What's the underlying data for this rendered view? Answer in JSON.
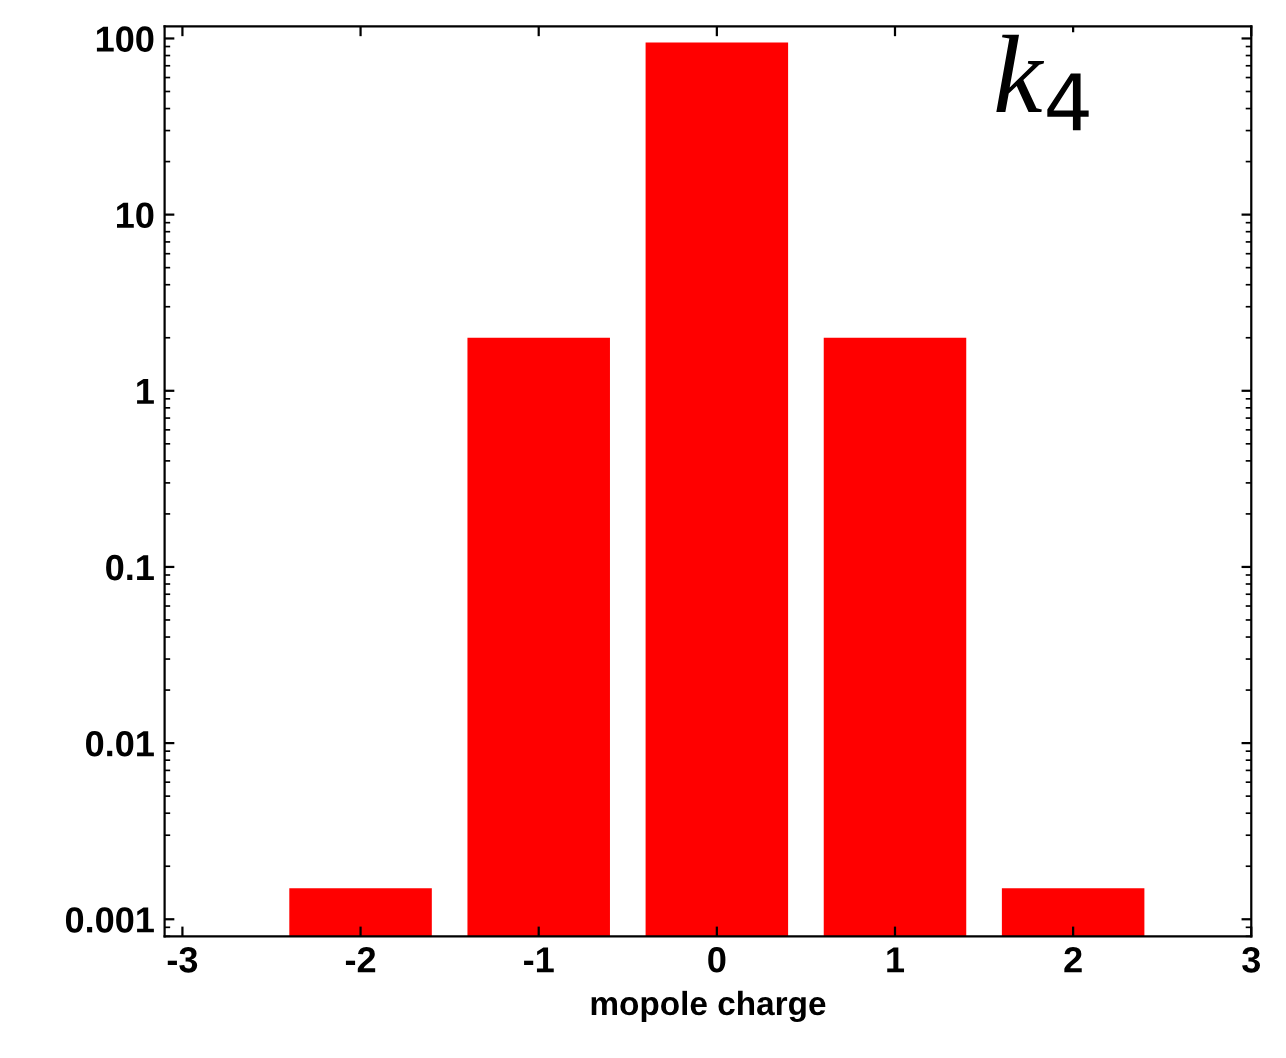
{
  "chart_data": {
    "type": "histogram",
    "xlabel": "mopole charge",
    "bins": [
      -2.4,
      -1.6,
      -1.4,
      -0.6,
      -0.4,
      0.4,
      0.6,
      1.4,
      1.6,
      2.4
    ],
    "values": [
      0.0015,
      null,
      2,
      null,
      95,
      null,
      2,
      null,
      0.0015
    ],
    "color": "#ff0000",
    "log": "y",
    "xlim": [
      -3.1,
      3.0
    ],
    "xticks": [
      -3,
      -2,
      -1,
      0,
      1,
      2,
      3
    ],
    "ylim": [
      0.0008,
      117
    ],
    "yticks": [
      0.001,
      0.01,
      0.1,
      1,
      10,
      100
    ],
    "annotations": [
      "k$_{4}$"
    ],
    "grid": false,
    "legend": false
  }
}
